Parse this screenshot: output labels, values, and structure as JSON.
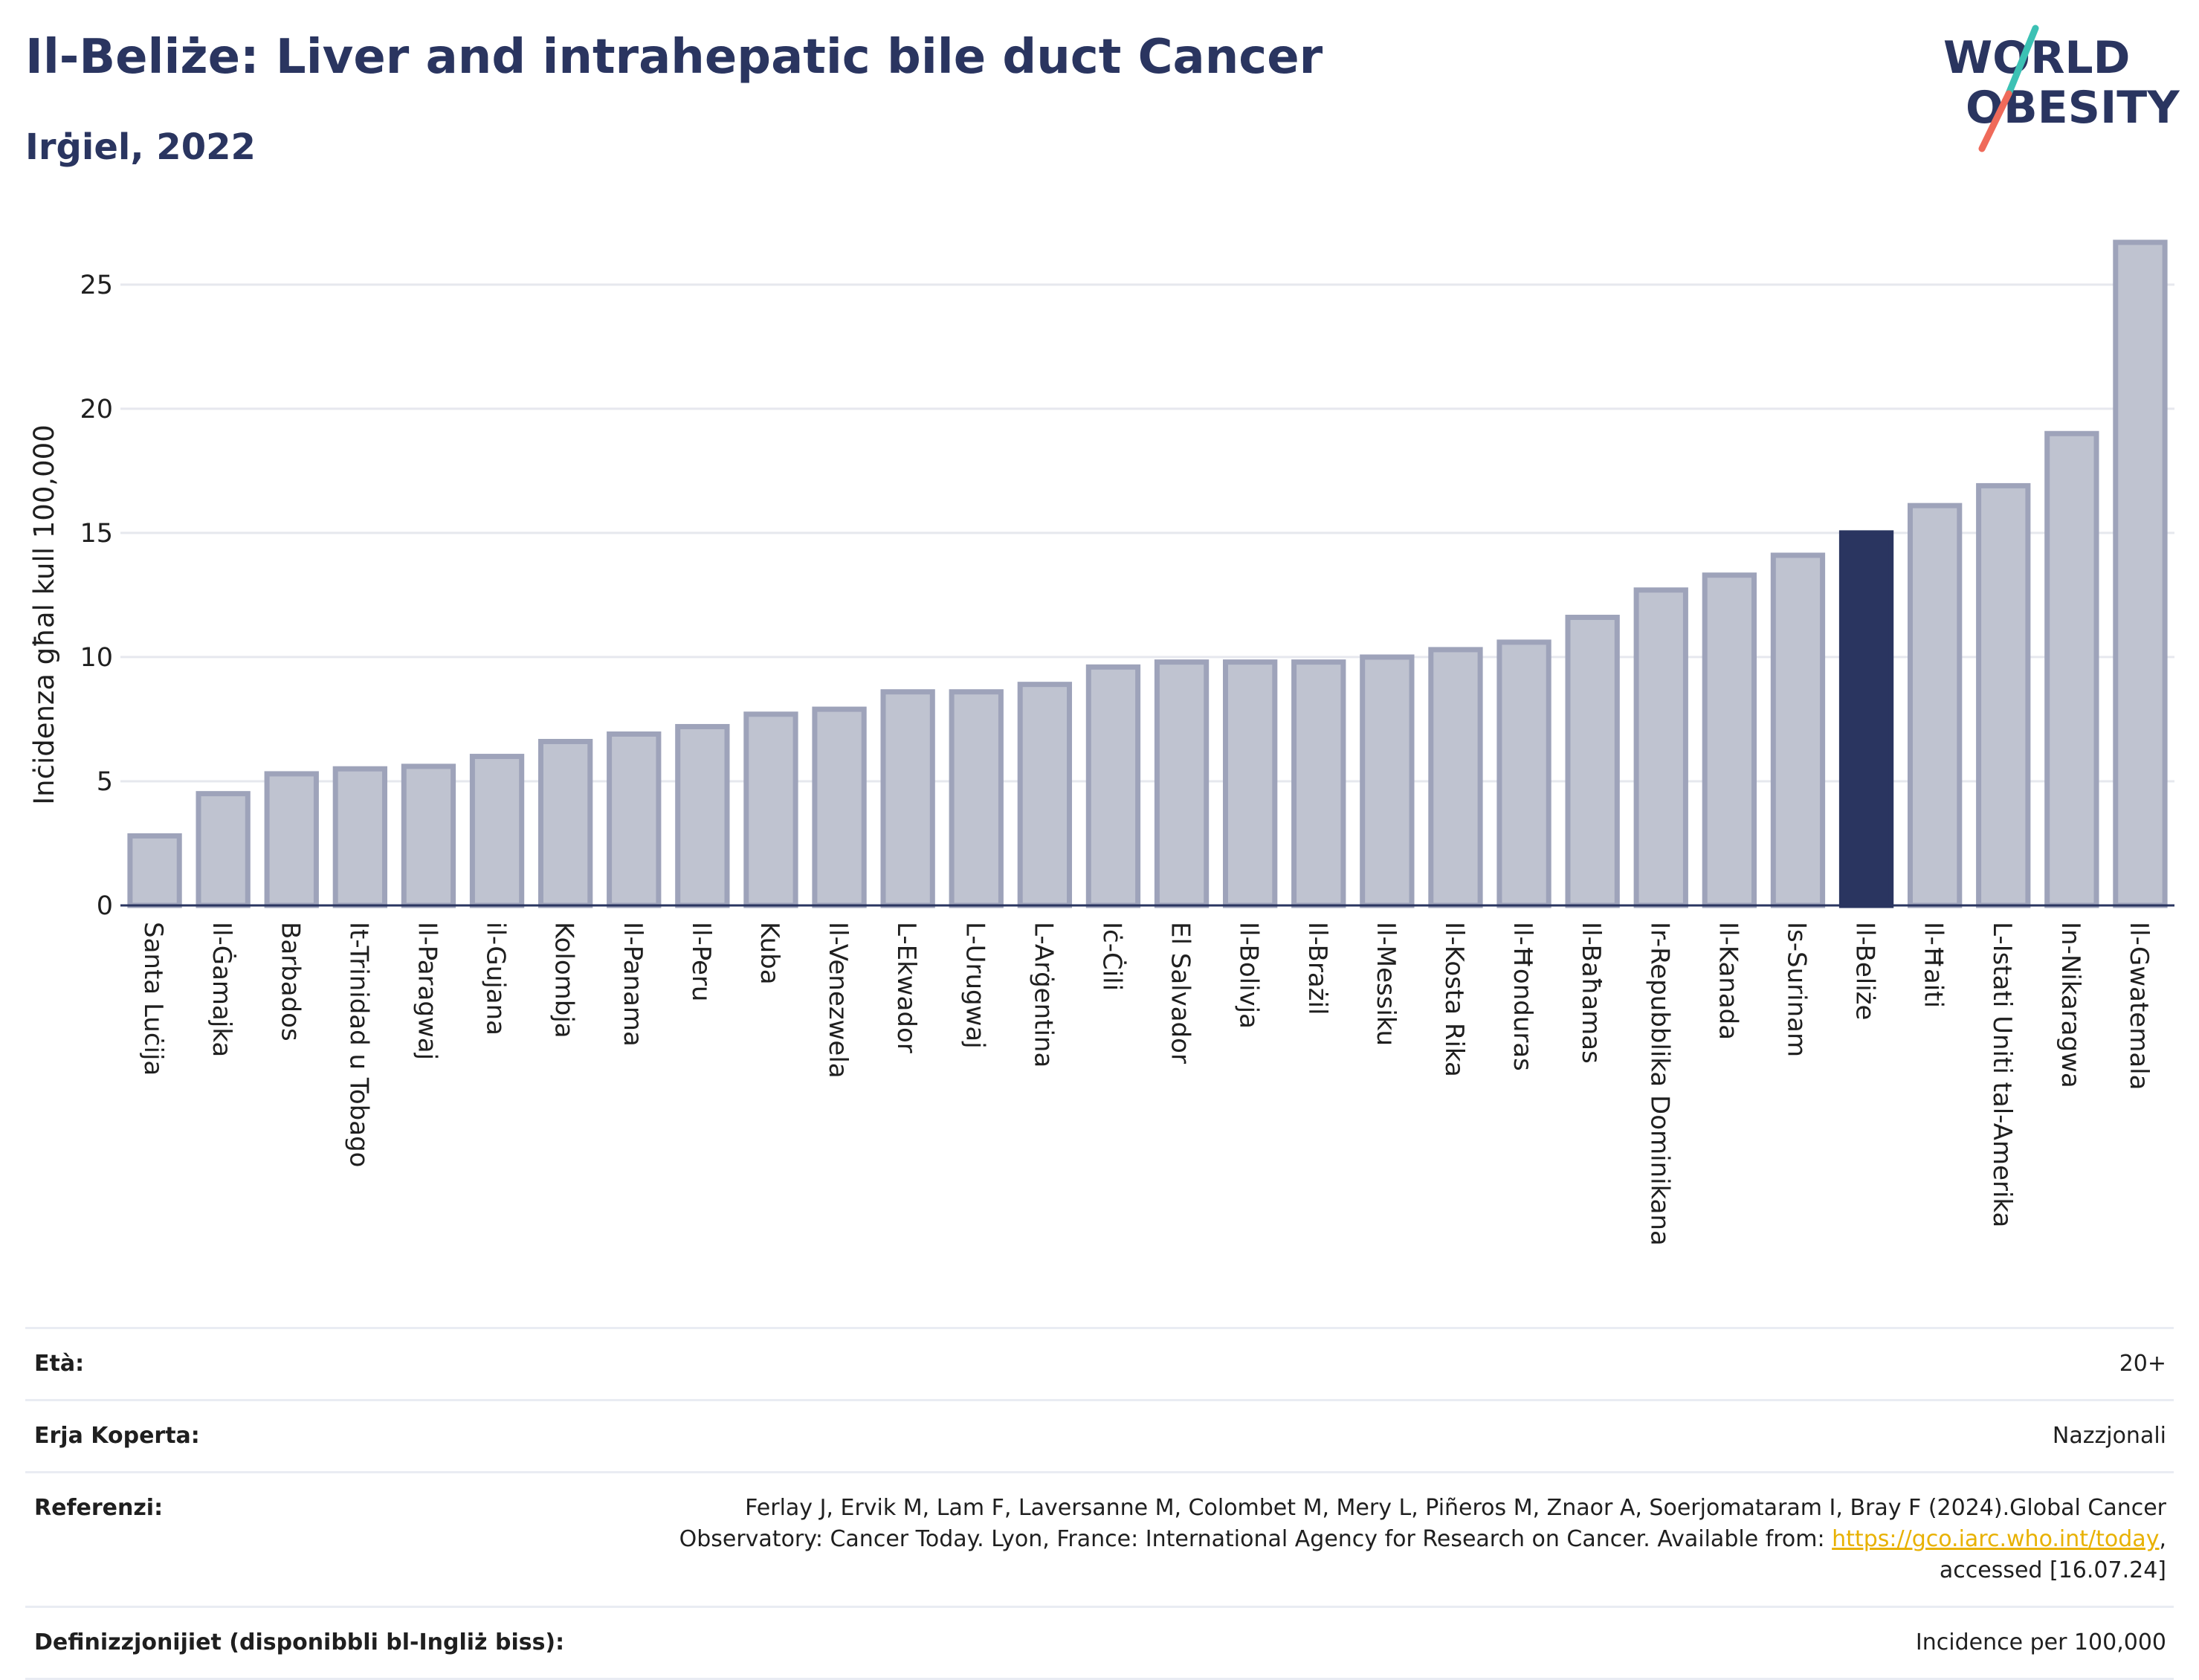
{
  "header": {
    "title": "Il-Beliże: Liver and intrahepatic bile duct Cancer",
    "subtitle": "Irġiel, 2022"
  },
  "logo": {
    "line1": "WORLD",
    "line2": "OBESITY",
    "colors": {
      "text": "#2a3560",
      "slash_top": "#3cc1b4",
      "slash_bottom": "#ef6a5a"
    }
  },
  "colors": {
    "bar_fill": "#bfc3d0",
    "bar_stroke": "#9ea3ba",
    "highlight_fill": "#2a3560",
    "grid": "#e6e8ee",
    "axis": "#2a3560"
  },
  "chart_data": {
    "type": "bar",
    "ylabel": "Inċidenza għal kull 100,000",
    "xlabel": "",
    "ylim": [
      0,
      27
    ],
    "yticks": [
      0,
      5,
      10,
      15,
      20,
      25
    ],
    "grid": true,
    "highlight": "Il-Beliże",
    "categories": [
      "Santa Luċija",
      "Il-Ġamajka",
      "Barbados",
      "It-Trinidad u Tobago",
      "Il-Paragwaj",
      "il-Gujana",
      "Kolombja",
      "Il-Panama",
      "Il-Peru",
      "Kuba",
      "Il-Venezwela",
      "L-Ekwador",
      "L-Urugwaj",
      "L-Arġentina",
      "Iċ-Ċili",
      "El Salvador",
      "Il-Bolivja",
      "Il-Brażil",
      "Il-Messiku",
      "Il-Kosta Rika",
      "Il-Ħonduras",
      "Il-Baħamas",
      "Ir-Repubblika Dominikana",
      "Il-Kanada",
      "Is-Surinam",
      "Il-Beliże",
      "Il-Ħaiti",
      "L-Istati Uniti tal-Amerika",
      "In-Nikaragwa",
      "Il-Gwatemala"
    ],
    "values": [
      2.8,
      4.5,
      5.3,
      5.5,
      5.6,
      6.0,
      6.6,
      6.9,
      7.2,
      7.7,
      7.9,
      8.6,
      8.6,
      8.9,
      9.6,
      9.8,
      9.8,
      9.8,
      10.0,
      10.3,
      10.6,
      11.6,
      12.7,
      13.3,
      14.1,
      15.0,
      16.1,
      16.9,
      19.0,
      26.7
    ]
  },
  "meta": {
    "age_label": "Età:",
    "age_value": "20+",
    "area_label": "Erja Koperta:",
    "area_value": "Nazzjonali",
    "ref_label": "Referenzi:",
    "ref_line1": "Ferlay J, Ervik M, Lam F, Laversanne M, Colombet M, Mery L, Piñeros M, Znaor A, Soerjomataram I, Bray F (2024).Global Cancer",
    "ref_line2_pre": "Observatory: Cancer Today. Lyon, France: International Agency for Research on Cancer. Available from: ",
    "ref_link": "https://gco.iarc.who.int/today",
    "ref_line2_post": ",",
    "ref_line3": "accessed [16.07.24]",
    "def_label": "Definizzjonijiet (disponibbli bl-Ingliż biss):",
    "def_value": "Incidence per 100,000"
  }
}
